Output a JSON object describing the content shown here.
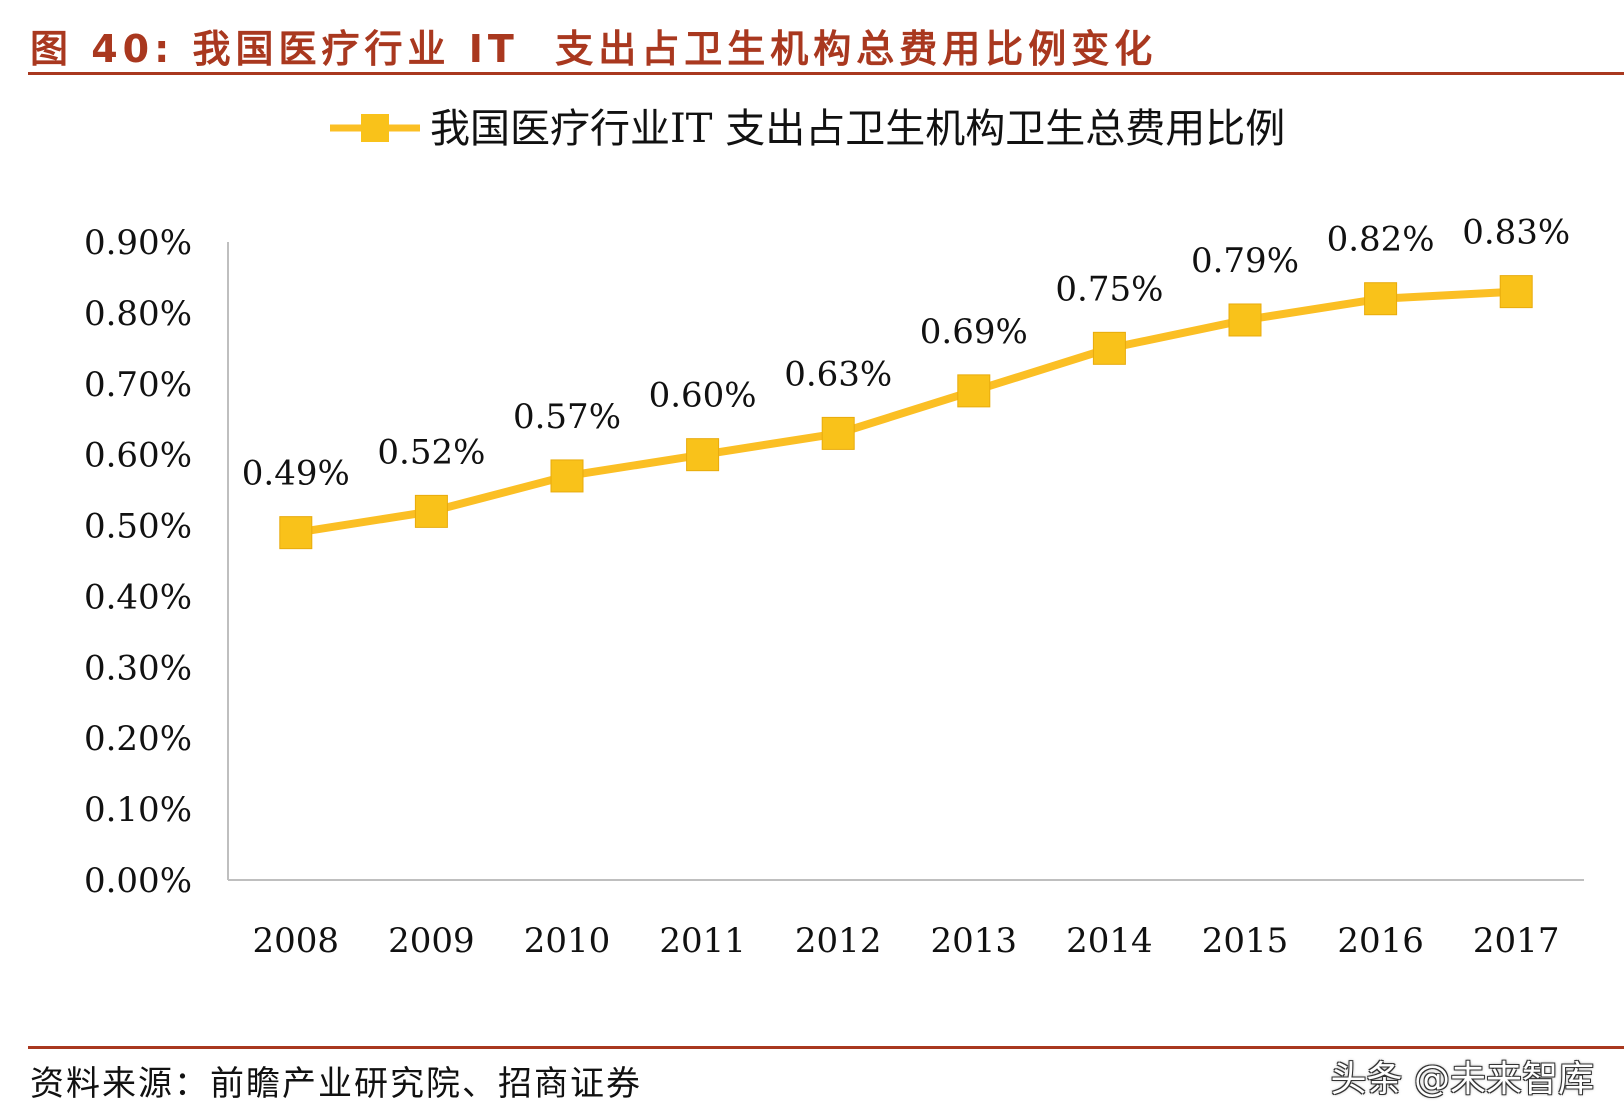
{
  "figure_title": "图 40: 我国医疗行业 IT  支出占卫生机构总费用比例变化",
  "source_note": "资料来源：前瞻产业研究院、招商证券",
  "watermark": "头条 @未来智库",
  "colors": {
    "accent": "#a9381f",
    "series": "#fbbf24",
    "marker": "#f9c21a",
    "axis": "#bfbfbf"
  },
  "chart_data": {
    "type": "line",
    "categories": [
      "2008",
      "2009",
      "2010",
      "2011",
      "2012",
      "2013",
      "2014",
      "2015",
      "2016",
      "2017"
    ],
    "series": [
      {
        "name": "我国医疗行业IT 支出占卫生机构卫生总费用比例",
        "values": [
          0.49,
          0.52,
          0.57,
          0.6,
          0.63,
          0.69,
          0.75,
          0.79,
          0.82,
          0.83
        ],
        "data_labels": [
          "0.49%",
          "0.52%",
          "0.57%",
          "0.60%",
          "0.63%",
          "0.69%",
          "0.75%",
          "0.79%",
          "0.82%",
          "0.83%"
        ],
        "marker": "square"
      }
    ],
    "ylim": [
      0,
      0.9
    ],
    "y_ticks": [
      0,
      0.1,
      0.2,
      0.3,
      0.4,
      0.5,
      0.6,
      0.7,
      0.8,
      0.9
    ],
    "y_tick_labels": [
      "0.00%",
      "0.10%",
      "0.20%",
      "0.30%",
      "0.40%",
      "0.50%",
      "0.60%",
      "0.70%",
      "0.80%",
      "0.90%"
    ],
    "grid": false,
    "legend_position": "top"
  }
}
